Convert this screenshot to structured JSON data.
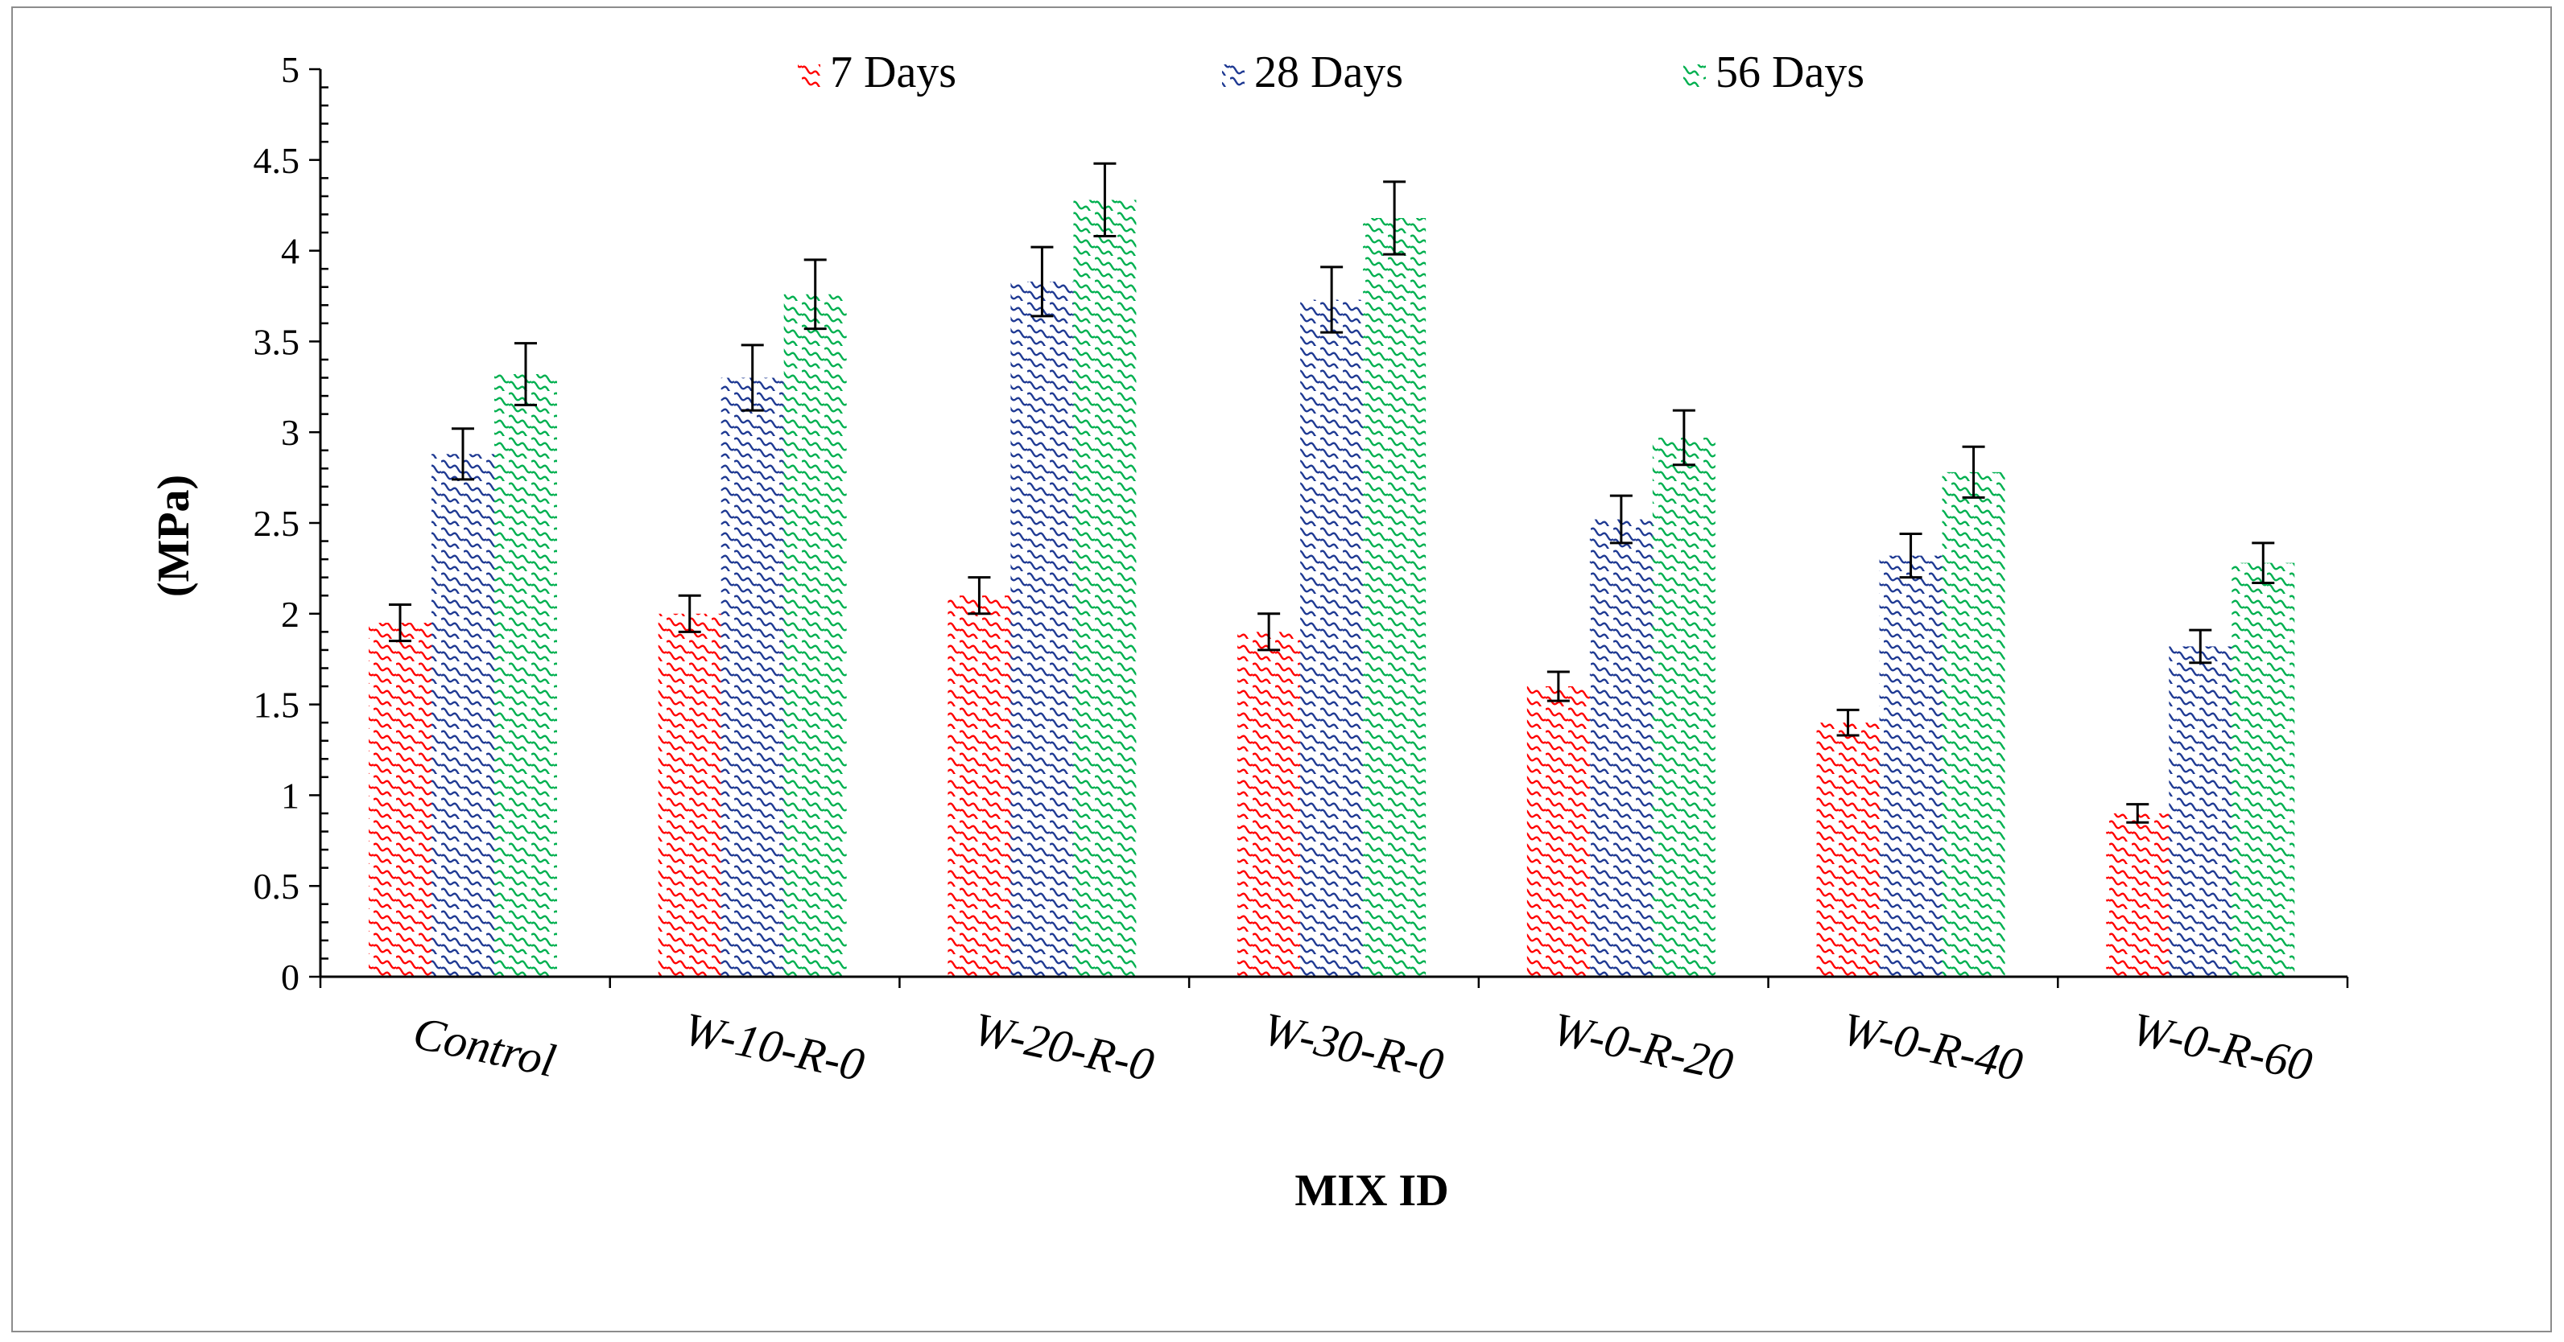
{
  "chart_data": {
    "type": "bar",
    "title": "",
    "xlabel": "MIX ID",
    "ylabel": "(MPa)",
    "ylim": [
      0,
      5
    ],
    "yticks": [
      0,
      0.5,
      1,
      1.5,
      2,
      2.5,
      3,
      3.5,
      4,
      4.5,
      5
    ],
    "ytick_labels": [
      "0",
      "0.5",
      "1",
      "1.5",
      "2",
      "2.5",
      "3",
      "3.5",
      "4",
      "4.5",
      "5"
    ],
    "grid": false,
    "legend_position": "top",
    "categories": [
      "Control",
      "W-10-R-0",
      "W-20-R-0",
      "W-30-R-0",
      "W-0-R-20",
      "W-0-R-40",
      "W-0-R-60"
    ],
    "series": [
      {
        "name": "7 Days",
        "color": "#ff0000",
        "values": [
          1.95,
          2.0,
          2.1,
          1.9,
          1.6,
          1.4,
          0.9
        ],
        "errors": [
          0.1,
          0.1,
          0.1,
          0.1,
          0.08,
          0.07,
          0.05
        ]
      },
      {
        "name": "28 Days",
        "color": "#1f3a93",
        "values": [
          2.88,
          3.3,
          3.83,
          3.73,
          2.52,
          2.32,
          1.82
        ],
        "errors": [
          0.14,
          0.18,
          0.19,
          0.18,
          0.13,
          0.12,
          0.09
        ]
      },
      {
        "name": "56 Days",
        "color": "#00b050",
        "values": [
          3.32,
          3.76,
          4.28,
          4.18,
          2.97,
          2.78,
          2.28
        ],
        "errors": [
          0.17,
          0.19,
          0.2,
          0.2,
          0.15,
          0.14,
          0.11
        ]
      }
    ]
  }
}
